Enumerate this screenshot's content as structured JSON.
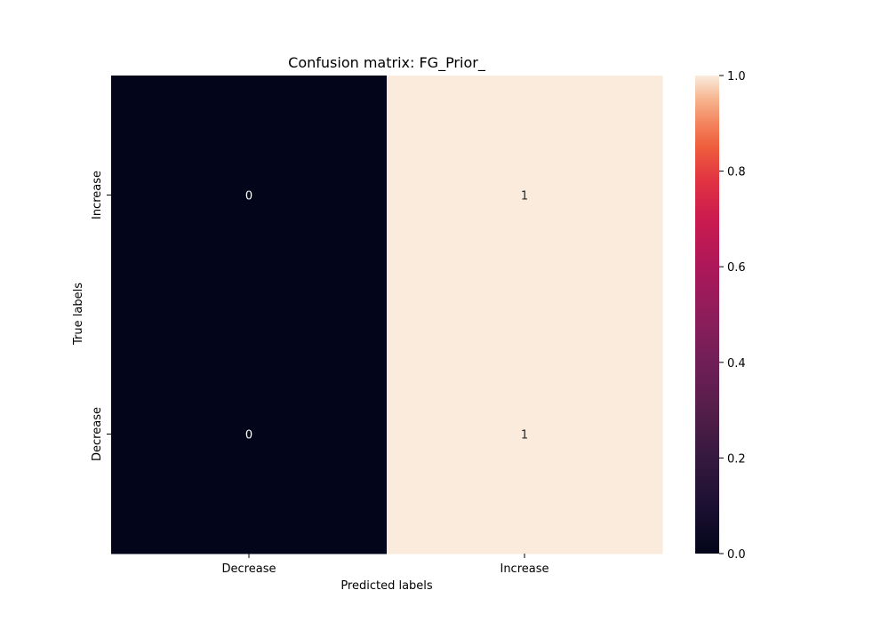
{
  "chart_data": {
    "type": "heatmap",
    "title": "Confusion matrix: FG_Prior_",
    "xlabel": "Predicted labels",
    "ylabel": "True labels",
    "x_categories": [
      "Decrease",
      "Increase"
    ],
    "y_categories": [
      "Increase",
      "Decrease"
    ],
    "values": [
      [
        0,
        1
      ],
      [
        0,
        1
      ]
    ],
    "cell_labels": [
      [
        "0",
        "1"
      ],
      [
        "0",
        "1"
      ]
    ],
    "colorbar": {
      "range": [
        0.0,
        1.0
      ],
      "ticks": [
        "0.0",
        "0.2",
        "0.4",
        "0.6",
        "0.8",
        "1.0"
      ],
      "colormap": "rocket",
      "low_color": "#03051a",
      "high_color": "#faebdd"
    },
    "grid": false
  }
}
